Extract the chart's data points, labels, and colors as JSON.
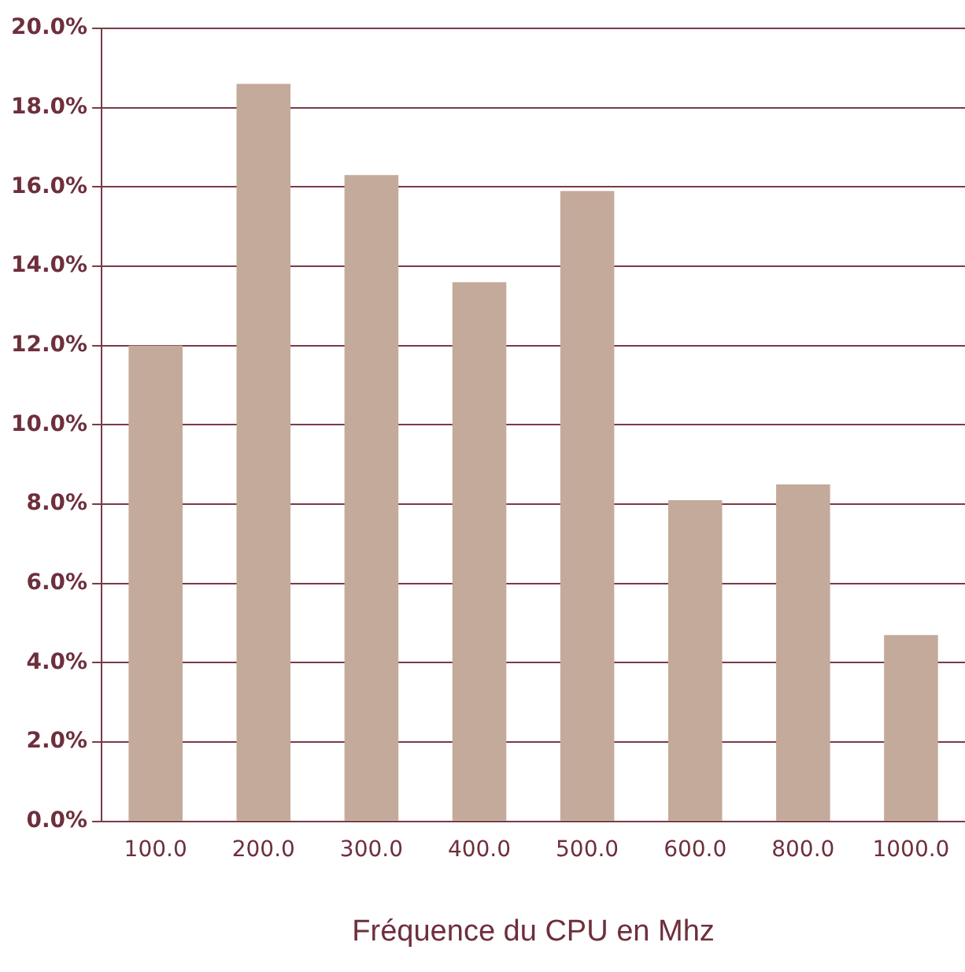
{
  "chart_data": {
    "type": "bar",
    "xlabel": "Fréquence du CPU en Mhz",
    "categories": [
      "100.0",
      "200.0",
      "300.0",
      "400.0",
      "500.0",
      "600.0",
      "800.0",
      "1000.0"
    ],
    "values": [
      12.0,
      18.6,
      16.3,
      13.6,
      15.9,
      8.1,
      8.5,
      4.7
    ],
    "color": "#c4aa9b",
    "ylim": [
      0,
      20
    ],
    "yticks": [
      {
        "value": 0,
        "label": "0.0%"
      },
      {
        "value": 2,
        "label": "2.0%"
      },
      {
        "value": 4,
        "label": "4.0%"
      },
      {
        "value": 6,
        "label": "6.0%"
      },
      {
        "value": 8,
        "label": "8.0%"
      },
      {
        "value": 10,
        "label": "10.0%"
      },
      {
        "value": 12,
        "label": "12.0%"
      },
      {
        "value": 14,
        "label": "14.0%"
      },
      {
        "value": 16,
        "label": "16.0%"
      },
      {
        "value": 18,
        "label": "18.0%"
      },
      {
        "value": 20,
        "label": "20.0%"
      }
    ],
    "grid": "y",
    "legend": false
  }
}
